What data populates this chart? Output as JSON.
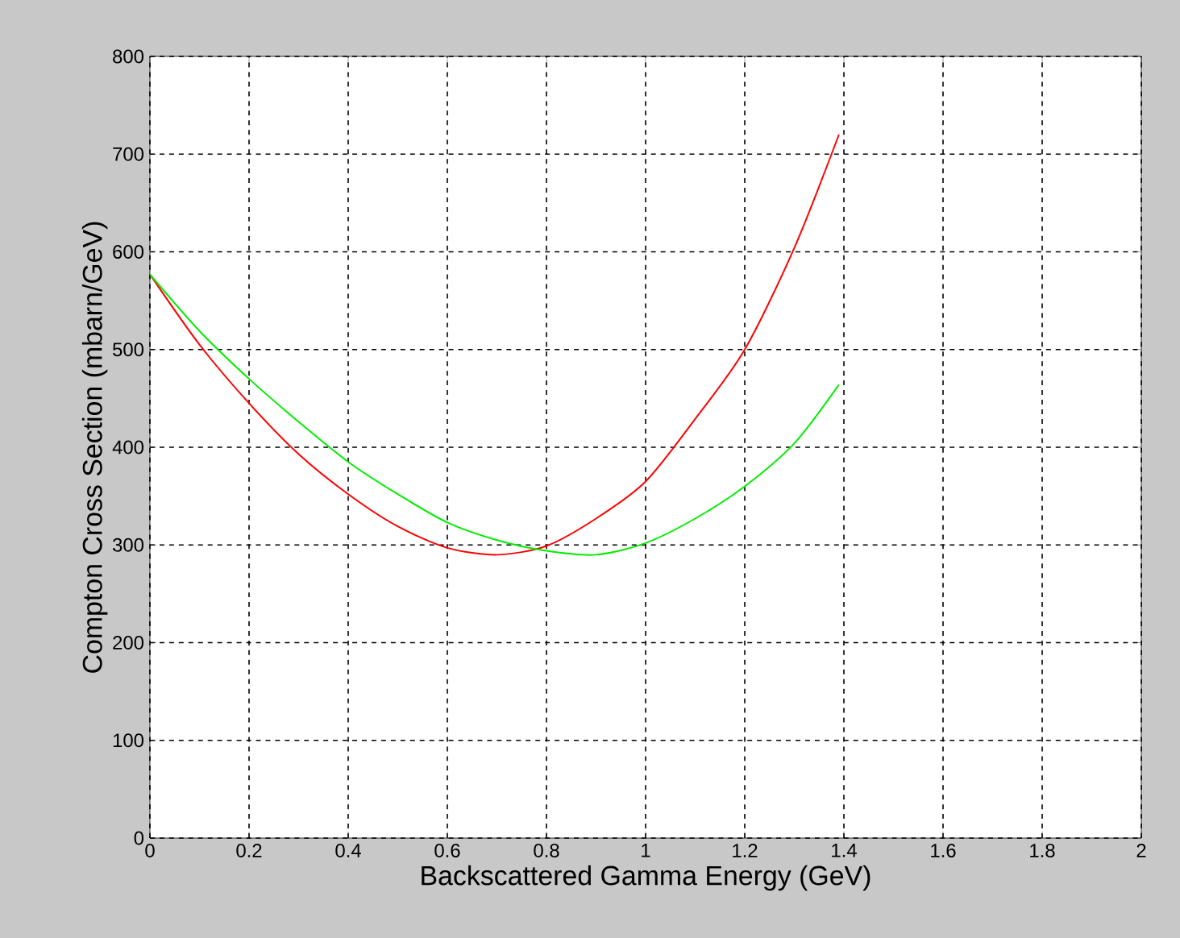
{
  "chart_data": {
    "type": "line",
    "xlabel": "Backscattered Gamma Energy (GeV)",
    "ylabel": "Compton Cross Section (mbarn/GeV)",
    "xlim": [
      0,
      2
    ],
    "ylim": [
      0,
      800
    ],
    "xticks": [
      0,
      0.2,
      0.4,
      0.6,
      0.8,
      1,
      1.2,
      1.4,
      1.6,
      1.8,
      2
    ],
    "yticks": [
      0,
      100,
      200,
      300,
      400,
      500,
      600,
      700,
      800
    ],
    "grid": true,
    "line_style": "solid",
    "marker": "none",
    "series": [
      {
        "color": "#ff0000",
        "x": [
          0,
          0.1,
          0.2,
          0.3,
          0.4,
          0.5,
          0.6,
          0.7,
          0.8,
          0.9,
          1.0,
          1.1,
          1.2,
          1.3,
          1.39
        ],
        "values": [
          577,
          505,
          445,
          393,
          352,
          319,
          297,
          290,
          299,
          327,
          365,
          429,
          500,
          604,
          720
        ]
      },
      {
        "color": "#00ee00",
        "x": [
          0,
          0.1,
          0.2,
          0.3,
          0.4,
          0.5,
          0.6,
          0.7,
          0.8,
          0.9,
          1.0,
          1.1,
          1.2,
          1.3,
          1.39
        ],
        "values": [
          577,
          519,
          470,
          426,
          385,
          352,
          323,
          305,
          294,
          290,
          302,
          327,
          360,
          404,
          464
        ]
      }
    ]
  }
}
